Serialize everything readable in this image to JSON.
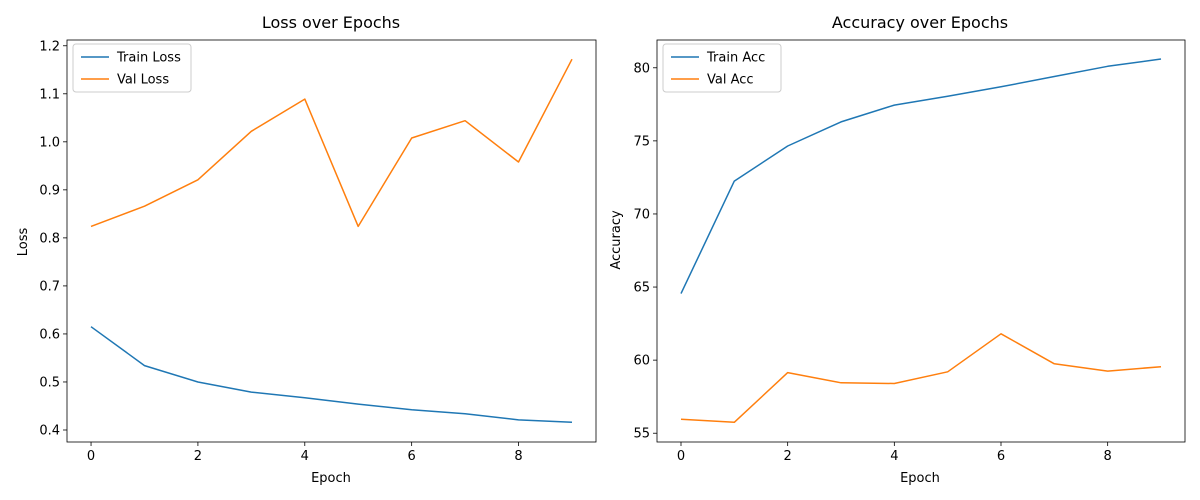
{
  "chart_data": [
    {
      "type": "line",
      "title": "Loss over Epochs",
      "xlabel": "Epoch",
      "ylabel": "Loss",
      "x": [
        0,
        1,
        2,
        3,
        4,
        5,
        6,
        7,
        8,
        9
      ],
      "xlim": [
        -0.45,
        9.45
      ],
      "ylim": [
        0.375,
        1.212
      ],
      "xticks": [
        0,
        2,
        4,
        6,
        8
      ],
      "yticks": [
        0.4,
        0.5,
        0.6,
        0.7,
        0.8,
        0.9,
        1.0,
        1.1,
        1.2
      ],
      "ytick_labels": [
        "0.4",
        "0.5",
        "0.6",
        "0.7",
        "0.8",
        "0.9",
        "1.0",
        "1.1",
        "1.2"
      ],
      "legend_position": "top-left",
      "grid": false,
      "series": [
        {
          "name": "Train Loss",
          "color": "#1f77b4",
          "values": [
            0.615,
            0.534,
            0.5,
            0.479,
            0.467,
            0.454,
            0.442,
            0.434,
            0.421,
            0.416
          ]
        },
        {
          "name": "Val Loss",
          "color": "#ff7f0e",
          "values": [
            0.824,
            0.866,
            0.921,
            1.022,
            1.089,
            0.824,
            1.008,
            1.044,
            0.958,
            1.172
          ]
        }
      ]
    },
    {
      "type": "line",
      "title": "Accuracy over Epochs",
      "xlabel": "Epoch",
      "ylabel": "Accuracy",
      "x": [
        0,
        1,
        2,
        3,
        4,
        5,
        6,
        7,
        8,
        9
      ],
      "xlim": [
        -0.45,
        9.45
      ],
      "ylim": [
        54.4,
        81.9
      ],
      "xticks": [
        0,
        2,
        4,
        6,
        8
      ],
      "yticks": [
        55,
        60,
        65,
        70,
        75,
        80
      ],
      "ytick_labels": [
        "55",
        "60",
        "65",
        "70",
        "75",
        "80"
      ],
      "legend_position": "top-left",
      "grid": false,
      "series": [
        {
          "name": "Train Acc",
          "color": "#1f77b4",
          "values": [
            64.55,
            72.25,
            74.65,
            76.3,
            77.45,
            78.05,
            78.7,
            79.4,
            80.1,
            80.6
          ]
        },
        {
          "name": "Val Acc",
          "color": "#ff7f0e",
          "values": [
            55.95,
            55.75,
            59.15,
            58.45,
            58.4,
            59.2,
            61.8,
            59.75,
            59.25,
            59.55
          ]
        }
      ]
    }
  ]
}
